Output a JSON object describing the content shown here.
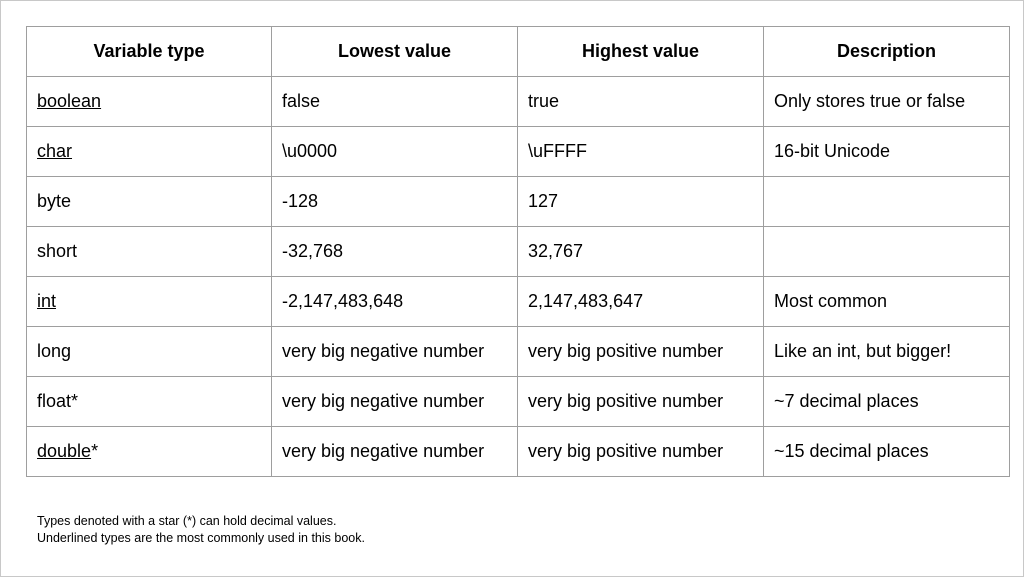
{
  "table": {
    "headers": [
      "Variable type",
      "Lowest value",
      "Highest value",
      "Description"
    ],
    "rows": [
      {
        "type": "boolean",
        "suffix": "",
        "underlined": true,
        "lowest": "false",
        "highest": "true",
        "description": "Only stores true or false"
      },
      {
        "type": "char",
        "suffix": "",
        "underlined": true,
        "lowest": "\\u0000",
        "highest": "\\uFFFF",
        "description": "16-bit Unicode"
      },
      {
        "type": "byte",
        "suffix": "",
        "underlined": false,
        "lowest": "-128",
        "highest": "127",
        "description": ""
      },
      {
        "type": "short",
        "suffix": "",
        "underlined": false,
        "lowest": "-32,768",
        "highest": "32,767",
        "description": ""
      },
      {
        "type": "int",
        "suffix": "",
        "underlined": true,
        "lowest": "-2,147,483,648",
        "highest": "2,147,483,647",
        "description": "Most common"
      },
      {
        "type": "long",
        "suffix": "",
        "underlined": false,
        "lowest": "very big negative number",
        "highest": "very big positive number",
        "description": "Like an int, but bigger!"
      },
      {
        "type": "float",
        "suffix": "*",
        "underlined": false,
        "lowest": "very big negative number",
        "highest": "very big positive number",
        "description": "~7 decimal places"
      },
      {
        "type": "double",
        "suffix": "*",
        "underlined": true,
        "lowest": "very big negative number",
        "highest": "very big positive number",
        "description": "~15 decimal places"
      }
    ]
  },
  "footnotes": [
    "Types denoted with a star (*) can hold decimal values.",
    "Underlined types are the most commonly used in this book."
  ]
}
